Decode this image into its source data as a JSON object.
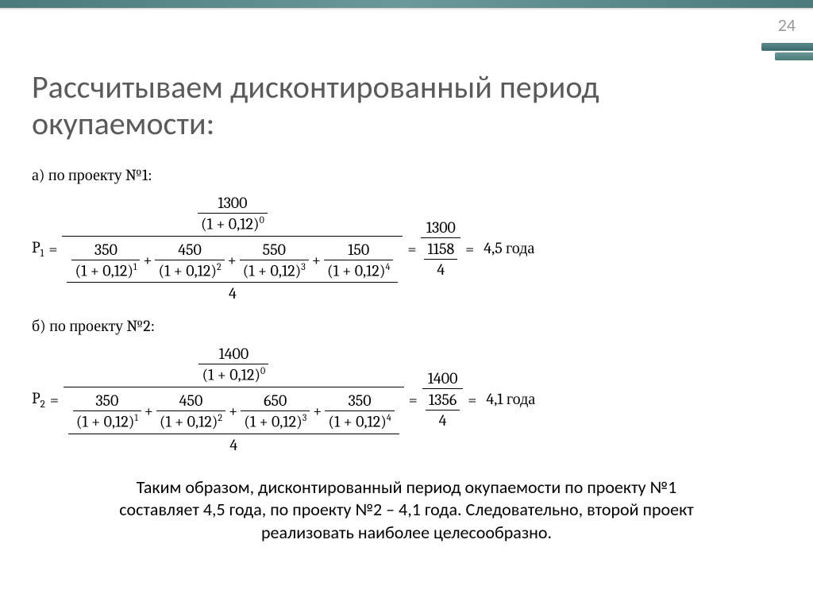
{
  "page_number": "24",
  "title": "Рассчитываем дисконтированный период окупаемости:",
  "project_a": {
    "label": "а) по проекту №1:",
    "p_symbol": "P",
    "p_index": "1",
    "numerator_value": "1300",
    "numerator_base": "(1 + 0,12)",
    "numerator_exp": "0",
    "terms": [
      {
        "num": "350",
        "base": "(1 + 0,12)",
        "exp": "1"
      },
      {
        "num": "450",
        "base": "(1 + 0,12)",
        "exp": "2"
      },
      {
        "num": "550",
        "base": "(1 + 0,12)",
        "exp": "3"
      },
      {
        "num": "150",
        "base": "(1 + 0,12)",
        "exp": "4"
      }
    ],
    "divisor": "4",
    "result_num": "1300",
    "result_den_top": "1158",
    "result_den_bot": "4",
    "final": "4,5 года"
  },
  "project_b": {
    "label": "б) по проекту №2:",
    "p_symbol": "P",
    "p_index": "2",
    "numerator_value": "1400",
    "numerator_base": "(1 + 0,12)",
    "numerator_exp": "0",
    "terms": [
      {
        "num": "350",
        "base": "(1 + 0,12)",
        "exp": "1"
      },
      {
        "num": "450",
        "base": "(1 + 0,12)",
        "exp": "2"
      },
      {
        "num": "650",
        "base": "(1 + 0,12)",
        "exp": "3"
      },
      {
        "num": "350",
        "base": "(1 + 0,12)",
        "exp": "4"
      }
    ],
    "divisor": "4",
    "result_num": "1400",
    "result_den_top": "1356",
    "result_den_bot": "4",
    "final": "4,1 года"
  },
  "conclusion": "Таким образом, дисконтированный период окупаемости по проекту №1 составляет 4,5 года, по проекту №2 – 4,1 года. Следовательно, второй проект реализовать наиболее целесообразно."
}
